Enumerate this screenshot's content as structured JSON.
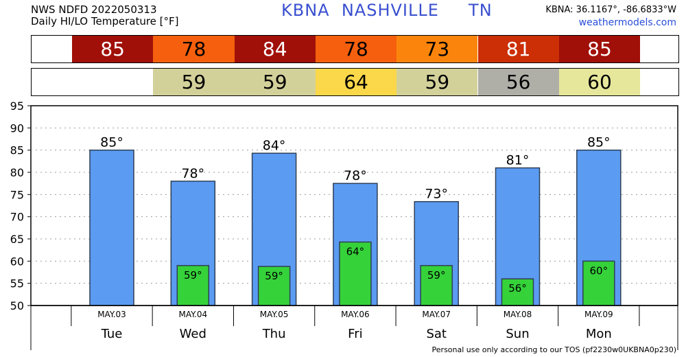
{
  "header": {
    "line1": "NWS NDFD 2022050313",
    "line2": "Daily HI/LO Temperature [°F]",
    "station": "KBNA  NASHVILLE     TN",
    "coords": "KBNA: 36.1167°, -86.6833°W",
    "site": "weathermodels.com"
  },
  "strips": {
    "hi": [
      {
        "value": "85",
        "color": "#a01008"
      },
      {
        "value": "78",
        "color": "#f55f0d"
      },
      {
        "value": "84",
        "color": "#a01008"
      },
      {
        "value": "78",
        "color": "#f55f0d"
      },
      {
        "value": "73",
        "color": "#fb850c"
      },
      {
        "value": "81",
        "color": "#cc2f06"
      },
      {
        "value": "85",
        "color": "#a01008"
      }
    ],
    "lo": [
      {
        "value": "",
        "color": "#ffffff"
      },
      {
        "value": "59",
        "color": "#d3d19a"
      },
      {
        "value": "59",
        "color": "#d3d19a"
      },
      {
        "value": "64",
        "color": "#fbd84a"
      },
      {
        "value": "59",
        "color": "#d3d19a"
      },
      {
        "value": "56",
        "color": "#afafa8"
      },
      {
        "value": "60",
        "color": "#e6e79b"
      }
    ]
  },
  "footer": "Personal use only according to our TOS (pf2230w0UKBNA0p230)",
  "chart_data": {
    "type": "bar",
    "categories": [
      "Tue",
      "Wed",
      "Thu",
      "Fri",
      "Sat",
      "Sun",
      "Mon"
    ],
    "dates": [
      "MAY.03",
      "MAY.04",
      "MAY.05",
      "MAY.06",
      "MAY.07",
      "MAY.08",
      "MAY.09"
    ],
    "series": [
      {
        "values": [
          85,
          78,
          84.3,
          77.5,
          73.4,
          81,
          85
        ],
        "labels": [
          "85°",
          "78°",
          "84°",
          "78°",
          "73°",
          "81°",
          "85°"
        ],
        "color": "#5b9bf2"
      },
      {
        "values": [
          null,
          59,
          58.8,
          64.3,
          59,
          56,
          60
        ],
        "labels": [
          "",
          "59°",
          "59°",
          "64°",
          "59°",
          "56°",
          "60°"
        ],
        "color": "#35d23a"
      }
    ],
    "ylim": [
      50,
      95
    ],
    "yticks": [
      50,
      55,
      60,
      65,
      70,
      75,
      80,
      85,
      90,
      95
    ],
    "grid": true
  }
}
